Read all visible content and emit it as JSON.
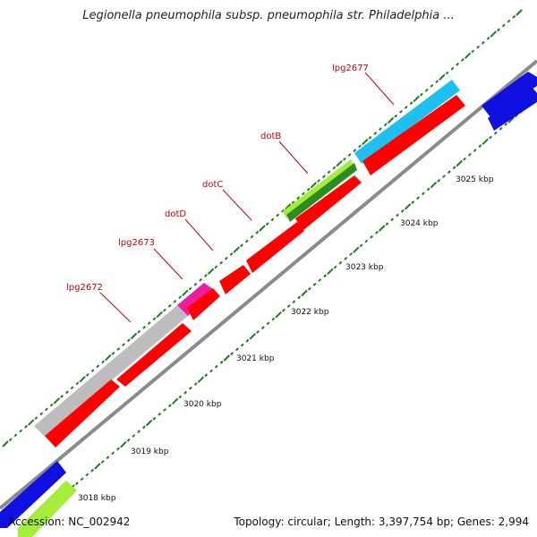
{
  "title": "Legionella pneumophila subsp. pneumophila str. Philadelphia ...",
  "accession": "Accession: NC_002942",
  "summary": "Topology: circular; Length: 3,397,754 bp; Genes: 2,994",
  "colors": {
    "backbone": "#8a8a8a",
    "tick": "#1f7a1f",
    "label": "#cc0000"
  },
  "scale": {
    "unit": "kbp",
    "labels": [
      "3018 kbp",
      "3019 kbp",
      "3020 kbp",
      "3021 kbp",
      "3022 kbp",
      "3023 kbp",
      "3024 kbp",
      "3025 kbp"
    ]
  },
  "gene_labels": [
    {
      "id": "lpg2672",
      "text": "lpg2672"
    },
    {
      "id": "lpg2673",
      "text": "lpg2673"
    },
    {
      "id": "dotD",
      "text": "dotD"
    },
    {
      "id": "dotC",
      "text": "dotC"
    },
    {
      "id": "dotB",
      "text": "dotB"
    },
    {
      "id": "lpg2677",
      "text": "lpg2677"
    }
  ]
}
